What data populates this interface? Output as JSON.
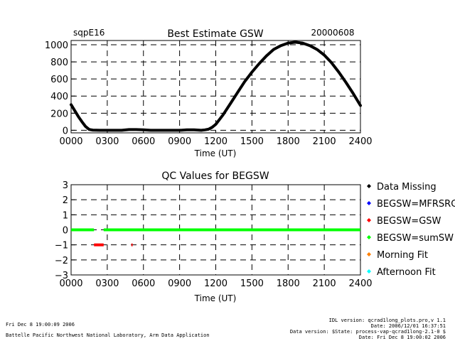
{
  "page": {
    "site": "sqpE16",
    "date": "20000608",
    "footer_left_line1": "Fri Dec  8 19:00:09 2006",
    "footer_left_line2": "Battelle Pacific Northwest National Laboratory, Arm Data Application",
    "footer_right": [
      "IDL version: qcrad1long_plots.pro,v 1.1",
      "Date: 2006/12/01 16:37:51",
      "Data version: $State: process-vap-qcrad1long-2.1-0 $",
      "Date: Fri Dec  8 19:00:02 2006"
    ]
  },
  "chart_data": [
    {
      "type": "line",
      "title": "Best Estimate GSW",
      "xlabel": "Time (UT)",
      "ylabel": "",
      "xlim": [
        0,
        2400
      ],
      "ylim": [
        -30,
        1050
      ],
      "xticks": [
        "0000",
        "0300",
        "0600",
        "0900",
        "1200",
        "1500",
        "1800",
        "2100",
        "2400"
      ],
      "yticks": [
        0,
        200,
        400,
        600,
        800,
        1000
      ],
      "grid": true,
      "series": [
        {
          "name": "BEGSW",
          "color": "#000000",
          "x": [
            0,
            30,
            60,
            90,
            120,
            150,
            180,
            240,
            300,
            360,
            420,
            480,
            540,
            600,
            660,
            720,
            780,
            840,
            900,
            960,
            1020,
            1080,
            1110,
            1140,
            1170,
            1200,
            1260,
            1320,
            1380,
            1440,
            1500,
            1560,
            1620,
            1680,
            1740,
            1800,
            1860,
            1920,
            1980,
            2040,
            2100,
            2160,
            2220,
            2280,
            2340,
            2400
          ],
          "y": [
            300,
            230,
            160,
            100,
            45,
            10,
            2,
            0,
            0,
            0,
            0,
            8,
            8,
            5,
            0,
            0,
            0,
            0,
            0,
            5,
            5,
            0,
            5,
            12,
            35,
            70,
            180,
            310,
            440,
            570,
            680,
            780,
            870,
            945,
            990,
            1020,
            1030,
            1020,
            990,
            945,
            880,
            790,
            680,
            560,
            430,
            290
          ]
        }
      ]
    },
    {
      "type": "scatter",
      "title": "QC Values for BEGSW",
      "xlabel": "Time (UT)",
      "ylabel": "",
      "xlim": [
        0,
        2400
      ],
      "ylim": [
        -3,
        3
      ],
      "xticks": [
        "0000",
        "0300",
        "0600",
        "0900",
        "1200",
        "1500",
        "1800",
        "2100",
        "2400"
      ],
      "yticks": [
        3,
        2,
        1,
        0,
        -1,
        -2,
        -3
      ],
      "grid": true,
      "legend_position": "right",
      "legend": [
        {
          "label": "Data Missing",
          "color": "#000000"
        },
        {
          "label": "BEGSW=MFRSRG",
          "color": "#0000ff"
        },
        {
          "label": "BEGSW=GSW",
          "color": "#ff0000"
        },
        {
          "label": "BEGSW=sumSW",
          "color": "#00ff00"
        },
        {
          "label": "Morning Fit",
          "color": "#ff8000"
        },
        {
          "label": "Afternoon Fit",
          "color": "#00ffff"
        }
      ],
      "segments": [
        {
          "series": "BEGSW=sumSW",
          "x_start": 0,
          "x_end": 190,
          "y": 0,
          "color": "#00ff00"
        },
        {
          "series": "BEGSW=sumSW",
          "x_start": 270,
          "x_end": 2400,
          "y": 0,
          "color": "#00ff00"
        },
        {
          "series": "BEGSW=GSW",
          "x_start": 190,
          "x_end": 270,
          "y": -1,
          "color": "#ff0000"
        },
        {
          "series": "BEGSW=GSW",
          "x_start": 500,
          "x_end": 510,
          "y": -1,
          "color": "#ff0000"
        }
      ]
    }
  ]
}
